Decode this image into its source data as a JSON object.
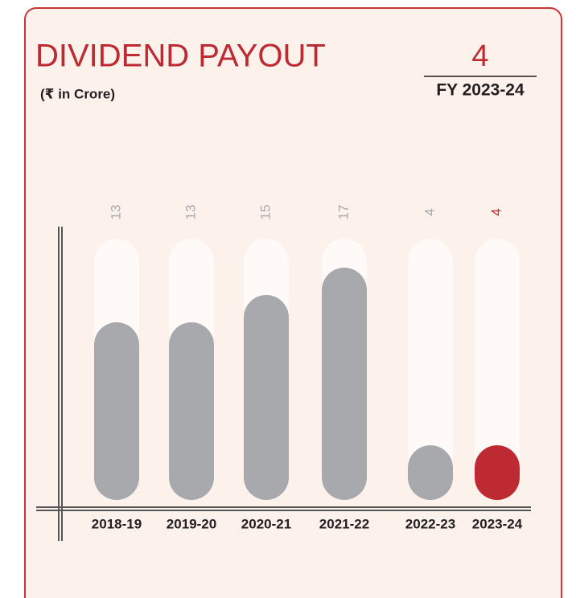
{
  "chart_data": {
    "type": "bar",
    "title": "DIVIDEND PAYOUT",
    "subtitle": "(₹ in Crore)",
    "headline": {
      "value": 4,
      "label": "FY 2023-24"
    },
    "categories": [
      "2018-19",
      "2019-20",
      "2020-21",
      "2021-22",
      "2022-23",
      "2023-24"
    ],
    "values": [
      13,
      13,
      15,
      17,
      4,
      4
    ],
    "colors": [
      "#a7a9ac",
      "#a7a9ac",
      "#a7a9ac",
      "#a7a9ac",
      "#a7a9ac",
      "#be2a32"
    ],
    "label_colors": [
      "#a7a9ac",
      "#a7a9ac",
      "#a7a9ac",
      "#a7a9ac",
      "#a7a9ac",
      "#be2a32"
    ]
  }
}
